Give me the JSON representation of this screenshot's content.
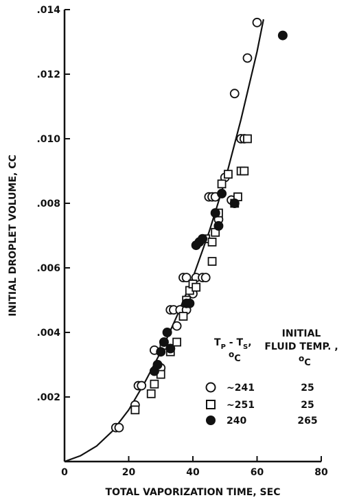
{
  "chart_data": {
    "type": "scatter",
    "title": "",
    "xlabel": "TOTAL VAPORIZATION TIME, SEC",
    "ylabel": "INITIAL DROPLET VOLUME, CC",
    "xlim": [
      0,
      80
    ],
    "ylim": [
      0,
      0.014
    ],
    "x_ticks": [
      "0",
      "20",
      "40",
      "60",
      "80"
    ],
    "y_ticks": [
      ".002",
      ".004",
      ".006",
      ".008",
      ".010",
      ".012",
      ".014"
    ],
    "grid": false,
    "legend": {
      "placement": "bottom-right",
      "col1_header_line1": "T",
      "col1_header_sub1": "P",
      "col1_header_mid": " - T",
      "col1_header_sub2": "S",
      "col1_header_comma": ",",
      "col1_header_unit_sup": "o",
      "col1_header_unit_sub": "C",
      "col2_header_line1": "INITIAL",
      "col2_header_line2": "FLUID TEMP. ,",
      "col2_header_unit_sup": "o",
      "col2_header_unit_sub": "C",
      "rows": [
        {
          "marker": "circle-open",
          "delta_t": "~241",
          "initial_temp": "25"
        },
        {
          "marker": "square-open",
          "delta_t": "~251",
          "initial_temp": "25"
        },
        {
          "marker": "circle-filled",
          "delta_t": "240",
          "initial_temp": "265"
        }
      ]
    },
    "series": [
      {
        "marker": "circle-open",
        "points": [
          [
            16,
            0.00105
          ],
          [
            17,
            0.00105
          ],
          [
            22,
            0.00175
          ],
          [
            23,
            0.00235
          ],
          [
            24,
            0.00235
          ],
          [
            28,
            0.00345
          ],
          [
            30,
            0.0029
          ],
          [
            33,
            0.0047
          ],
          [
            34,
            0.0047
          ],
          [
            35,
            0.0042
          ],
          [
            36,
            0.0047
          ],
          [
            37,
            0.0057
          ],
          [
            38,
            0.0057
          ],
          [
            38,
            0.0047
          ],
          [
            40,
            0.0052
          ],
          [
            41,
            0.0057
          ],
          [
            43,
            0.0057
          ],
          [
            44,
            0.0057
          ],
          [
            45,
            0.0082
          ],
          [
            46,
            0.0082
          ],
          [
            47,
            0.0082
          ],
          [
            48,
            0.0075
          ],
          [
            50,
            0.0088
          ],
          [
            52,
            0.0081
          ],
          [
            53,
            0.0114
          ],
          [
            55,
            0.01
          ],
          [
            56,
            0.01
          ],
          [
            57,
            0.0125
          ],
          [
            60,
            0.0136
          ]
        ]
      },
      {
        "marker": "square-open",
        "points": [
          [
            22,
            0.0016
          ],
          [
            27,
            0.0021
          ],
          [
            28,
            0.0024
          ],
          [
            30,
            0.0027
          ],
          [
            31,
            0.0036
          ],
          [
            33,
            0.0034
          ],
          [
            35,
            0.0037
          ],
          [
            37,
            0.0045
          ],
          [
            38,
            0.005
          ],
          [
            39,
            0.0053
          ],
          [
            40,
            0.0055
          ],
          [
            41,
            0.0054
          ],
          [
            44,
            0.0069
          ],
          [
            46,
            0.0068
          ],
          [
            46,
            0.0062
          ],
          [
            47,
            0.0071
          ],
          [
            48,
            0.0077
          ],
          [
            49,
            0.0086
          ],
          [
            51,
            0.0089
          ],
          [
            53,
            0.008
          ],
          [
            54,
            0.0082
          ],
          [
            55,
            0.009
          ],
          [
            56,
            0.009
          ],
          [
            57,
            0.01
          ]
        ]
      },
      {
        "marker": "circle-filled",
        "points": [
          [
            28,
            0.0028
          ],
          [
            29,
            0.003
          ],
          [
            30,
            0.0034
          ],
          [
            31,
            0.0037
          ],
          [
            32,
            0.004
          ],
          [
            33,
            0.0035
          ],
          [
            38,
            0.0049
          ],
          [
            39,
            0.0049
          ],
          [
            41,
            0.0067
          ],
          [
            42,
            0.0068
          ],
          [
            43,
            0.0069
          ],
          [
            47,
            0.0077
          ],
          [
            48,
            0.0073
          ],
          [
            49,
            0.0083
          ],
          [
            53,
            0.008
          ],
          [
            68,
            0.0132
          ]
        ]
      }
    ],
    "fit_curve": [
      [
        0,
        0
      ],
      [
        5,
        0.00018
      ],
      [
        10,
        0.00048
      ],
      [
        15,
        0.00095
      ],
      [
        20,
        0.0016
      ],
      [
        25,
        0.00245
      ],
      [
        30,
        0.0034
      ],
      [
        35,
        0.0045
      ],
      [
        40,
        0.0057
      ],
      [
        45,
        0.0071
      ],
      [
        50,
        0.0087
      ],
      [
        55,
        0.0106
      ],
      [
        60,
        0.0127
      ],
      [
        62,
        0.0137
      ]
    ]
  }
}
